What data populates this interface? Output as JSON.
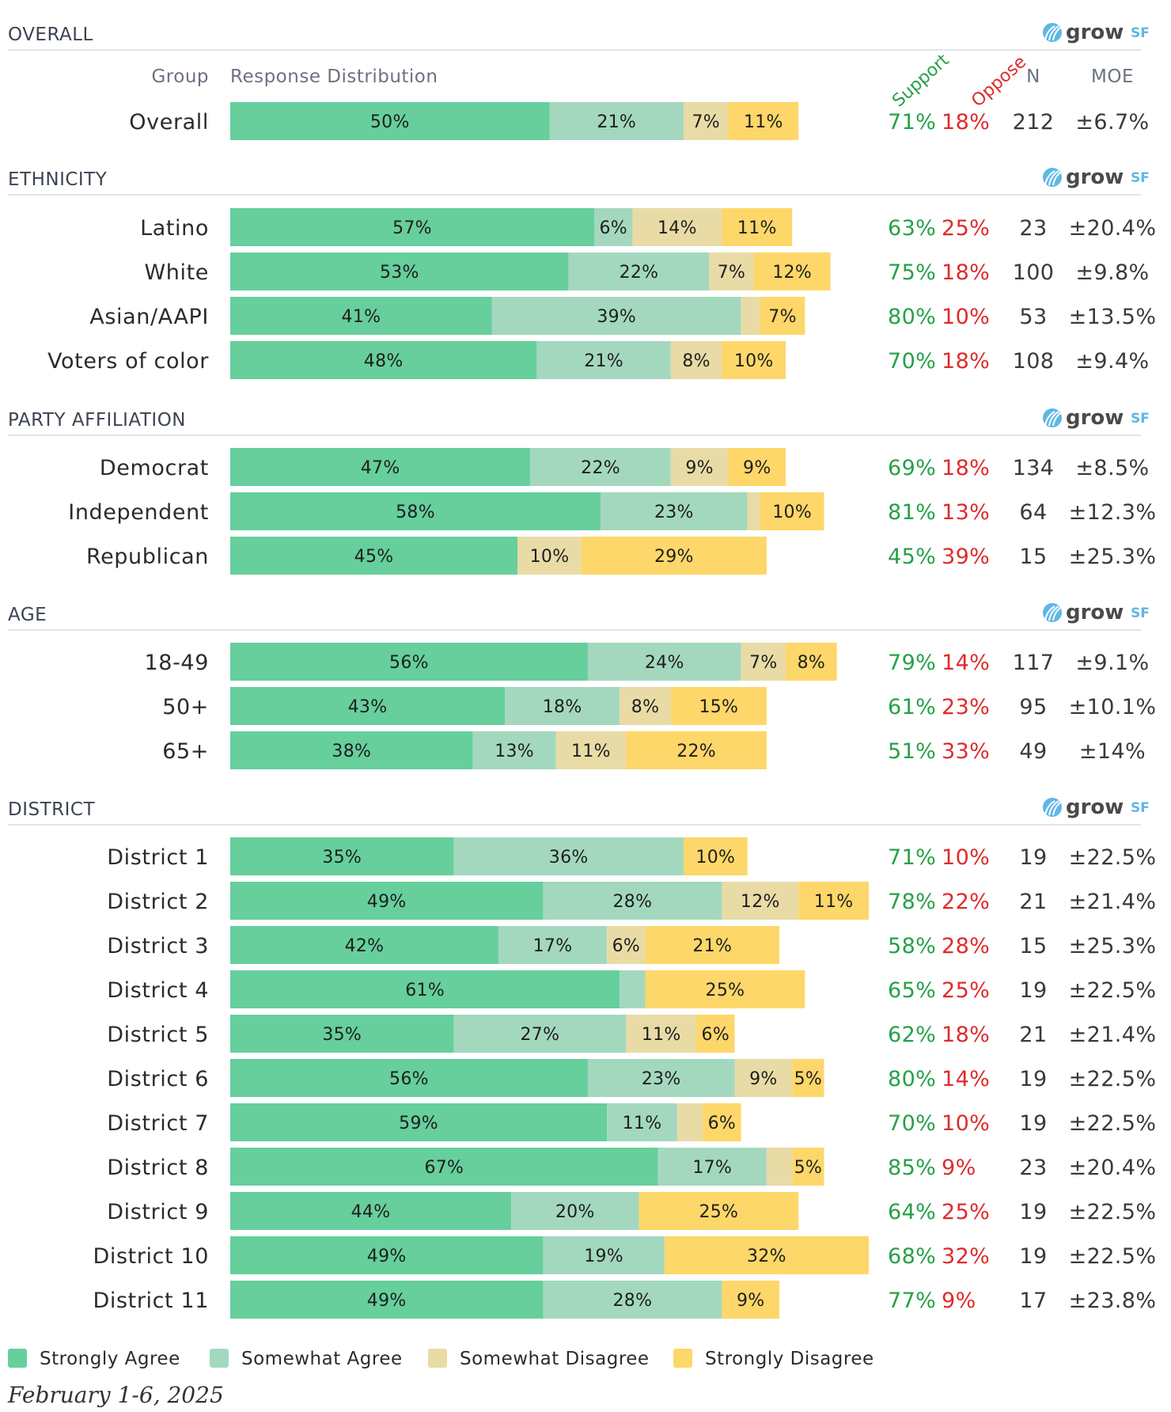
{
  "headers": {
    "group": "Group",
    "distribution": "Response Distribution",
    "support": "Support",
    "oppose": "Oppose",
    "n": "N",
    "moe": "MOE"
  },
  "logo": {
    "grow": "grow",
    "sf": "SF"
  },
  "colors": {
    "strongly_agree": "#66cf9c",
    "somewhat_agree": "#a3d8bf",
    "somewhat_disagree": "#e8dba6",
    "strongly_disagree": "#fdd769",
    "support_text": "#26a148",
    "oppose_text": "#de2b2b"
  },
  "legend": [
    "Strongly Agree",
    "Somewhat Agree",
    "Somewhat Disagree",
    "Strongly Disagree"
  ],
  "date": "February 1-6, 2025",
  "chart_data": {
    "type": "bar",
    "orientation": "horizontal",
    "stacked": true,
    "unit": "%",
    "series": [
      "Strongly Agree",
      "Somewhat Agree",
      "Somewhat Disagree",
      "Strongly Disagree"
    ],
    "sections": [
      {
        "title": "OVERALL",
        "show_headers": true,
        "rows": [
          {
            "group": "Overall",
            "values": [
              50,
              21,
              7,
              11
            ],
            "labels": [
              "50%",
              "21%",
              "7%",
              "11%"
            ],
            "support": "71%",
            "oppose": "18%",
            "n": "212",
            "moe": "±6.7%"
          }
        ]
      },
      {
        "title": "ETHNICITY",
        "rows": [
          {
            "group": "Latino",
            "values": [
              57,
              6,
              14,
              11
            ],
            "labels": [
              "57%",
              "6%",
              "14%",
              "11%"
            ],
            "support": "63%",
            "oppose": "25%",
            "n": "23",
            "moe": "±20.4%"
          },
          {
            "group": "White",
            "values": [
              53,
              22,
              7,
              12
            ],
            "labels": [
              "53%",
              "22%",
              "7%",
              "12%"
            ],
            "support": "75%",
            "oppose": "18%",
            "n": "100",
            "moe": "±9.8%"
          },
          {
            "group": "Asian/AAPI",
            "values": [
              41,
              39,
              3,
              7
            ],
            "labels": [
              "41%",
              "39%",
              "",
              "7%"
            ],
            "support": "80%",
            "oppose": "10%",
            "n": "53",
            "moe": "±13.5%"
          },
          {
            "group": "Voters of color",
            "values": [
              48,
              21,
              8,
              10
            ],
            "labels": [
              "48%",
              "21%",
              "8%",
              "10%"
            ],
            "support": "70%",
            "oppose": "18%",
            "n": "108",
            "moe": "±9.4%"
          }
        ]
      },
      {
        "title": "PARTY AFFILIATION",
        "rows": [
          {
            "group": "Democrat",
            "values": [
              47,
              22,
              9,
              9
            ],
            "labels": [
              "47%",
              "22%",
              "9%",
              "9%"
            ],
            "support": "69%",
            "oppose": "18%",
            "n": "134",
            "moe": "±8.5%"
          },
          {
            "group": "Independent",
            "values": [
              58,
              23,
              2,
              10
            ],
            "labels": [
              "58%",
              "23%",
              "",
              "10%"
            ],
            "support": "81%",
            "oppose": "13%",
            "n": "64",
            "moe": "±12.3%"
          },
          {
            "group": "Republican",
            "values": [
              45,
              0,
              10,
              29
            ],
            "labels": [
              "45%",
              "",
              "10%",
              "29%"
            ],
            "support": "45%",
            "oppose": "39%",
            "n": "15",
            "moe": "±25.3%"
          }
        ]
      },
      {
        "title": "AGE",
        "rows": [
          {
            "group": "18-49",
            "values": [
              56,
              24,
              7,
              8
            ],
            "labels": [
              "56%",
              "24%",
              "7%",
              "8%"
            ],
            "support": "79%",
            "oppose": "14%",
            "n": "117",
            "moe": "±9.1%"
          },
          {
            "group": "50+",
            "values": [
              43,
              18,
              8,
              15
            ],
            "labels": [
              "43%",
              "18%",
              "8%",
              "15%"
            ],
            "support": "61%",
            "oppose": "23%",
            "n": "95",
            "moe": "±10.1%"
          },
          {
            "group": "65+",
            "values": [
              38,
              13,
              11,
              22
            ],
            "labels": [
              "38%",
              "13%",
              "11%",
              "22%"
            ],
            "support": "51%",
            "oppose": "33%",
            "n": "49",
            "moe": "±14%"
          }
        ]
      },
      {
        "title": "DISTRICT",
        "rows": [
          {
            "group": "District 1",
            "values": [
              35,
              36,
              0,
              10
            ],
            "labels": [
              "35%",
              "36%",
              "",
              "10%"
            ],
            "support": "71%",
            "oppose": "10%",
            "n": "19",
            "moe": "±22.5%"
          },
          {
            "group": "District 2",
            "values": [
              49,
              28,
              12,
              11
            ],
            "labels": [
              "49%",
              "28%",
              "12%",
              "11%"
            ],
            "support": "78%",
            "oppose": "22%",
            "n": "21",
            "moe": "±21.4%"
          },
          {
            "group": "District 3",
            "values": [
              42,
              17,
              6,
              21
            ],
            "labels": [
              "42%",
              "17%",
              "6%",
              "21%"
            ],
            "support": "58%",
            "oppose": "28%",
            "n": "15",
            "moe": "±25.3%"
          },
          {
            "group": "District 4",
            "values": [
              61,
              4,
              0,
              25
            ],
            "labels": [
              "61%",
              "",
              "",
              "25%"
            ],
            "support": "65%",
            "oppose": "25%",
            "n": "19",
            "moe": "±22.5%"
          },
          {
            "group": "District 5",
            "values": [
              35,
              27,
              11,
              6
            ],
            "labels": [
              "35%",
              "27%",
              "11%",
              "6%"
            ],
            "support": "62%",
            "oppose": "18%",
            "n": "21",
            "moe": "±21.4%"
          },
          {
            "group": "District 6",
            "values": [
              56,
              23,
              9,
              5
            ],
            "labels": [
              "56%",
              "23%",
              "9%",
              "5%"
            ],
            "support": "80%",
            "oppose": "14%",
            "n": "19",
            "moe": "±22.5%"
          },
          {
            "group": "District 7",
            "values": [
              59,
              11,
              4,
              6
            ],
            "labels": [
              "59%",
              "11%",
              "",
              "6%"
            ],
            "support": "70%",
            "oppose": "10%",
            "n": "19",
            "moe": "±22.5%"
          },
          {
            "group": "District 8",
            "values": [
              67,
              17,
              4,
              5
            ],
            "labels": [
              "67%",
              "17%",
              "",
              "5%"
            ],
            "support": "85%",
            "oppose": "9%",
            "n": "23",
            "moe": "±20.4%"
          },
          {
            "group": "District 9",
            "values": [
              44,
              20,
              0,
              25
            ],
            "labels": [
              "44%",
              "20%",
              "",
              "25%"
            ],
            "support": "64%",
            "oppose": "25%",
            "n": "19",
            "moe": "±22.5%"
          },
          {
            "group": "District 10",
            "values": [
              49,
              19,
              0,
              32
            ],
            "labels": [
              "49%",
              "19%",
              "",
              "32%"
            ],
            "support": "68%",
            "oppose": "32%",
            "n": "19",
            "moe": "±22.5%"
          },
          {
            "group": "District 11",
            "values": [
              49,
              28,
              0,
              9
            ],
            "labels": [
              "49%",
              "28%",
              "",
              "9%"
            ],
            "support": "77%",
            "oppose": "9%",
            "n": "17",
            "moe": "±23.8%"
          }
        ]
      }
    ]
  }
}
